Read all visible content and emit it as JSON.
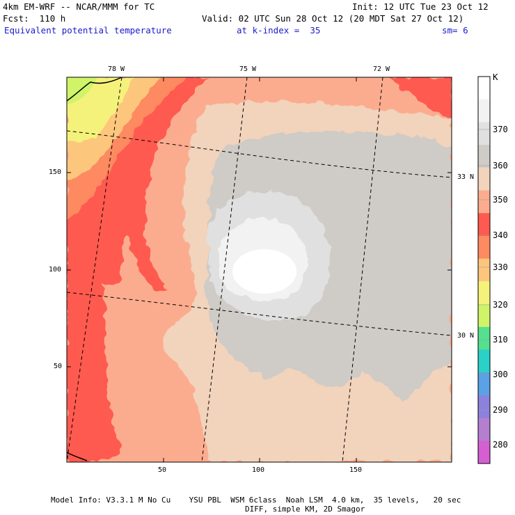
{
  "header": {
    "model": "4km EM-WRF -- NCAR/MMM for TC",
    "init": "Init: 12 UTC Tue 23 Oct 12",
    "forecast": "Fcst:  110 h",
    "valid": "Valid: 02 UTC Sun 28 Oct 12 (20 MDT Sat 27 Oct 12)",
    "field": "Equivalent potential temperature",
    "level": "at k-index =  35",
    "smoothing": "sm= 6"
  },
  "axes": {
    "x_ticks": [
      "50",
      "100",
      "150"
    ],
    "y_ticks": [
      "150",
      "100",
      "50"
    ],
    "longitude_labels": [
      "78 W",
      "75 W",
      "72 W"
    ],
    "latitude_labels": [
      "33 N",
      "30 N"
    ]
  },
  "colorbar": {
    "unit": "K",
    "labels": [
      "370",
      "360",
      "350",
      "340",
      "330",
      "320",
      "310",
      "300",
      "290",
      "280"
    ],
    "bands": [
      {
        "color": "#ffffff"
      },
      {
        "color": "#f2f2f2"
      },
      {
        "color": "#e0e0e0"
      },
      {
        "color": "#cfcbc6"
      },
      {
        "color": "#f2d3bb"
      },
      {
        "color": "#fbac8f"
      },
      {
        "color": "#ff5a4f"
      },
      {
        "color": "#fd8a61"
      },
      {
        "color": "#fdc67d"
      },
      {
        "color": "#f4f27a"
      },
      {
        "color": "#cff468"
      },
      {
        "color": "#55e08f"
      },
      {
        "color": "#29d1c6"
      },
      {
        "color": "#5aa1e6"
      },
      {
        "color": "#8c82dd"
      },
      {
        "color": "#b57fcf"
      },
      {
        "color": "#d65ed3"
      }
    ]
  },
  "footer": {
    "line1": "Model Info: V3.3.1 M No Cu    YSU PBL  WSM 6class  Noah LSM  4.0 km,  35 levels,   20 sec",
    "line2": "DIFF, simple KM, 2D Smagor"
  }
}
